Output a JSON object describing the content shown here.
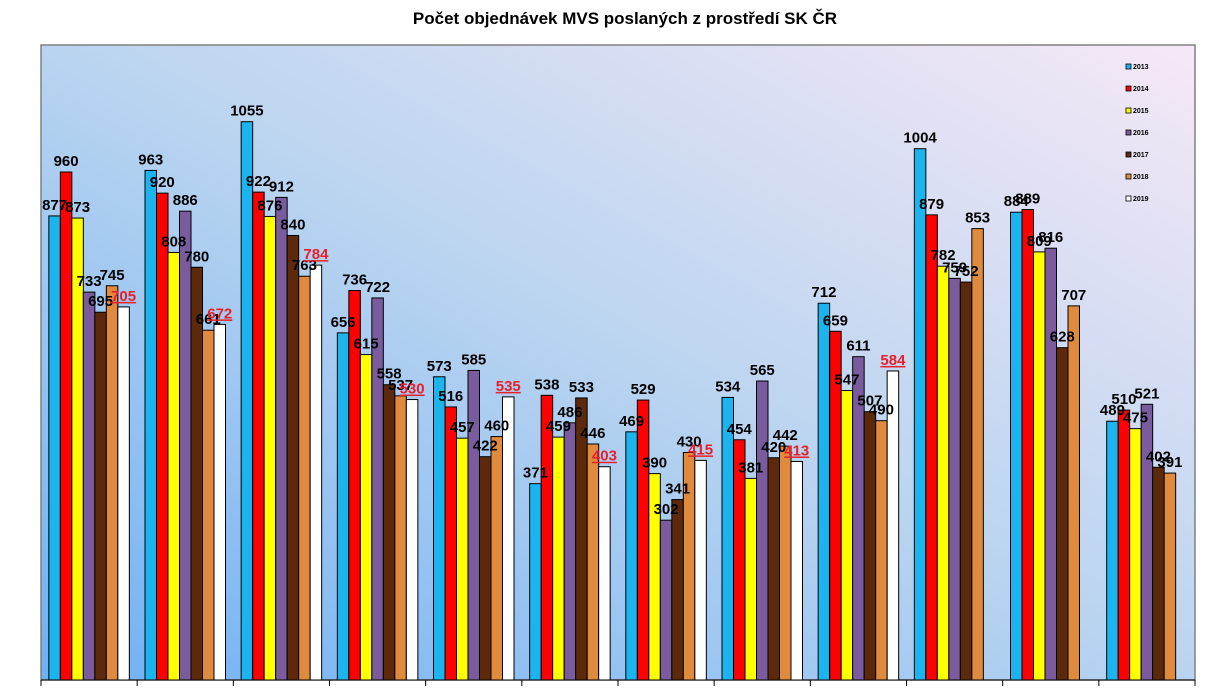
{
  "chart_data": {
    "type": "bar",
    "title": "Počet objednávek MVS poslaných z prostředí SK ČR",
    "categories": [
      null,
      null,
      null,
      null,
      null,
      null,
      null,
      null,
      null,
      null,
      null,
      null
    ],
    "ylim": [
      0,
      1200
    ],
    "legend": "top-right",
    "series": [
      {
        "name": "2013",
        "color": "#1cb4ee",
        "values": [
          877,
          963,
          1055,
          656,
          573,
          371,
          469,
          534,
          712,
          1004,
          884,
          489
        ]
      },
      {
        "name": "2014",
        "color": "#ff0000",
        "values": [
          960,
          920,
          922,
          736,
          516,
          538,
          529,
          454,
          659,
          879,
          889,
          510
        ]
      },
      {
        "name": "2015",
        "color": "#ffff00",
        "values": [
          873,
          808,
          876,
          615,
          457,
          459,
          390,
          381,
          547,
          782,
          809,
          475
        ]
      },
      {
        "name": "2016",
        "color": "#7a5c9e",
        "values": [
          733,
          886,
          912,
          722,
          585,
          486,
          302,
          565,
          611,
          759,
          816,
          521
        ]
      },
      {
        "name": "2017",
        "color": "#5c2a0a",
        "values": [
          695,
          780,
          840,
          558,
          422,
          533,
          341,
          420,
          507,
          752,
          628,
          402
        ]
      },
      {
        "name": "2018",
        "color": "#e08a3e",
        "values": [
          745,
          661,
          763,
          537,
          460,
          446,
          430,
          442,
          490,
          853,
          707,
          391
        ]
      },
      {
        "name": "2019",
        "color": "#ffffff",
        "label_color": "#e8202a",
        "label_underline": true,
        "values": [
          705,
          672,
          784,
          530,
          535,
          403,
          415,
          413,
          584,
          null,
          null,
          null
        ]
      }
    ]
  }
}
